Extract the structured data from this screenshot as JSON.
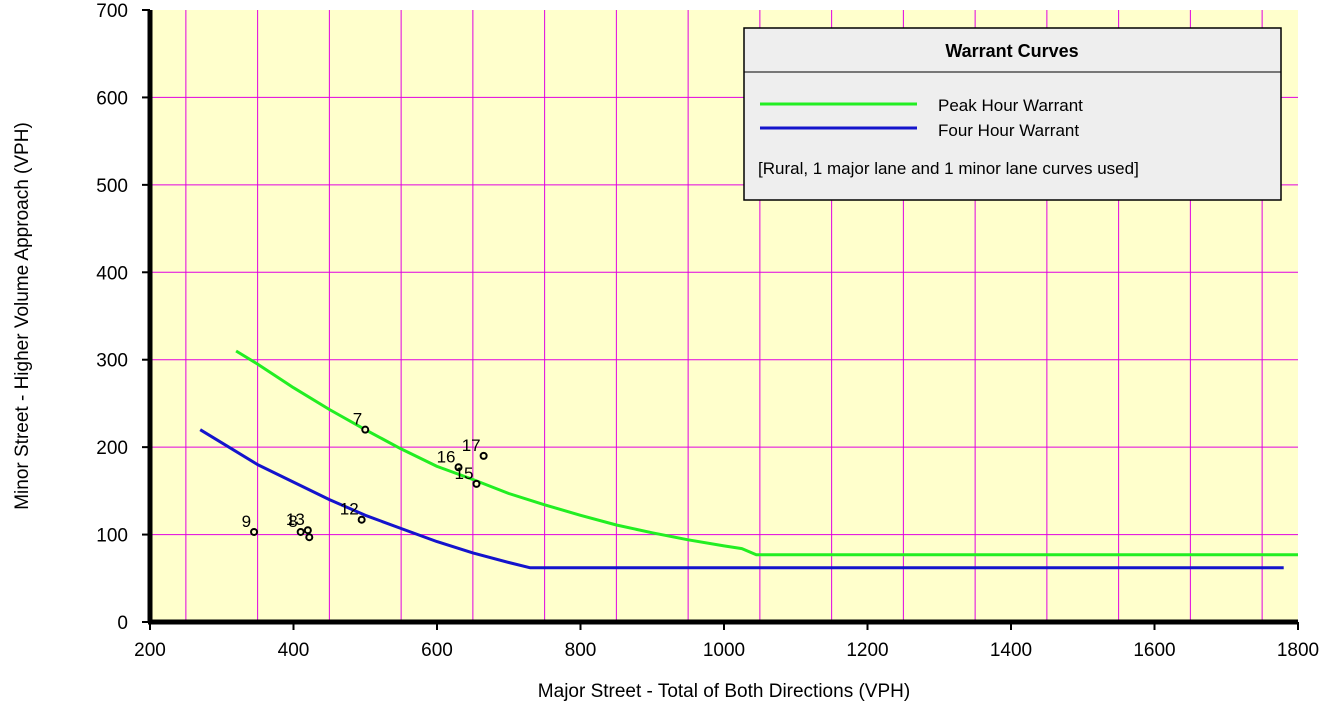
{
  "chart_data": {
    "type": "line",
    "xlabel": "Major Street - Total of Both Directions (VPH)",
    "ylabel": "Minor Street - Higher Volume Approach (VPH)",
    "xlim": [
      200,
      1800
    ],
    "ylim": [
      0,
      700
    ],
    "x_ticks": [
      200,
      400,
      600,
      800,
      1000,
      1200,
      1400,
      1600,
      1800
    ],
    "y_ticks": [
      0,
      100,
      200,
      300,
      400,
      500,
      600,
      700
    ],
    "grid": true,
    "legend": {
      "title": "Warrant Curves",
      "note": "[Rural,  1 major lane and 1 minor lane curves used]",
      "placement": "top-right"
    },
    "series": [
      {
        "name": "Peak Hour Warrant",
        "color": "#22ee22",
        "points": [
          [
            320,
            310
          ],
          [
            350,
            295
          ],
          [
            400,
            268
          ],
          [
            450,
            243
          ],
          [
            500,
            220
          ],
          [
            550,
            198
          ],
          [
            600,
            178
          ],
          [
            650,
            163
          ],
          [
            700,
            147
          ],
          [
            750,
            134
          ],
          [
            800,
            122
          ],
          [
            850,
            111
          ],
          [
            900,
            102
          ],
          [
            950,
            94
          ],
          [
            1000,
            87
          ],
          [
            1025,
            84
          ],
          [
            1045,
            77
          ],
          [
            1800,
            77
          ]
        ]
      },
      {
        "name": "Four Hour Warrant",
        "color": "#1414cc",
        "points": [
          [
            270,
            220
          ],
          [
            300,
            205
          ],
          [
            350,
            180
          ],
          [
            400,
            160
          ],
          [
            450,
            140
          ],
          [
            500,
            122
          ],
          [
            550,
            107
          ],
          [
            600,
            92
          ],
          [
            650,
            79
          ],
          [
            700,
            68
          ],
          [
            730,
            62
          ],
          [
            1780,
            62
          ]
        ]
      }
    ],
    "points": [
      {
        "label": "7",
        "x": 500,
        "y": 220
      },
      {
        "label": "17",
        "x": 665,
        "y": 190
      },
      {
        "label": "16",
        "x": 630,
        "y": 177
      },
      {
        "label": "15",
        "x": 655,
        "y": 158
      },
      {
        "label": "12",
        "x": 495,
        "y": 117
      },
      {
        "label": "9",
        "x": 345,
        "y": 103
      },
      {
        "label": "8",
        "x": 410,
        "y": 103
      },
      {
        "label": "13",
        "x": 420,
        "y": 105
      },
      {
        "label": "",
        "x": 422,
        "y": 97
      }
    ],
    "colors": {
      "plot_background": "#ffffcc",
      "grid": "#e000e0",
      "legend_background": "#eeeeee"
    }
  }
}
